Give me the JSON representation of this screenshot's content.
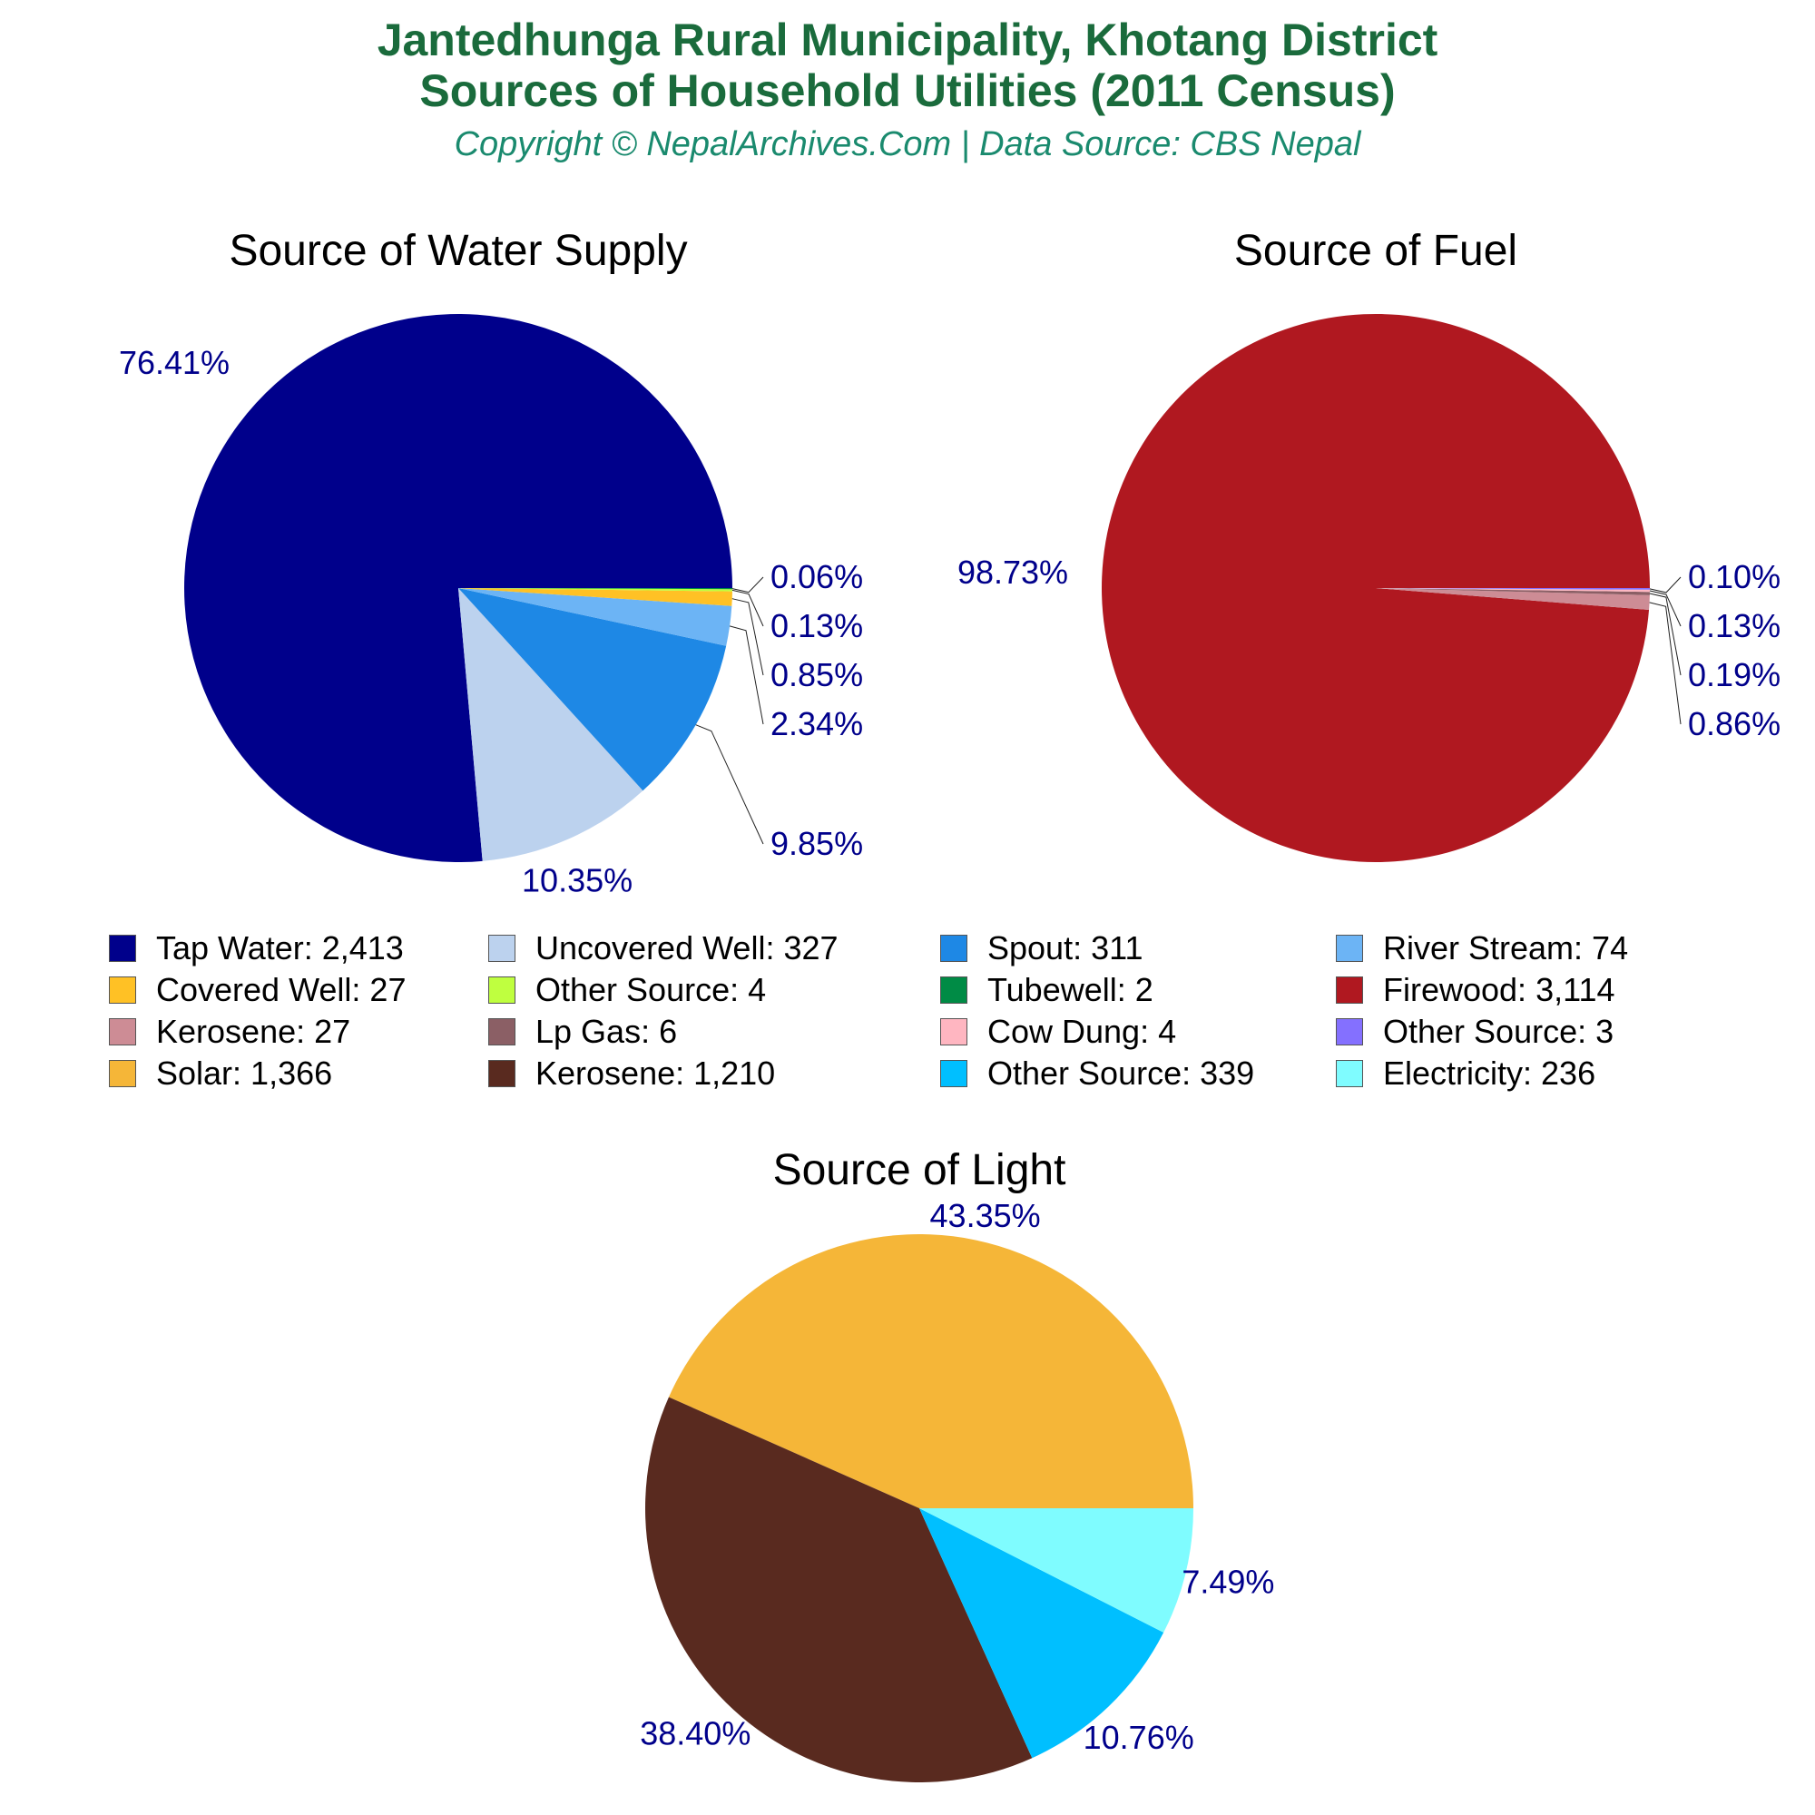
{
  "header": {
    "title_line1": "Jantedhunga Rural Municipality, Khotang District",
    "title_line2": "Sources of Household Utilities (2011 Census)",
    "copyright": "Copyright © NepalArchives.Com | Data Source: CBS Nepal"
  },
  "chart_data": [
    {
      "type": "pie",
      "title": "Source of Water Supply",
      "slices": [
        {
          "label": "Tap Water",
          "value": 2413,
          "pct_label": "76.41%",
          "color": "#00008b"
        },
        {
          "label": "Uncovered Well",
          "value": 327,
          "pct_label": "10.35%",
          "color": "#bcd2ee"
        },
        {
          "label": "Spout",
          "value": 311,
          "pct_label": "9.85%",
          "color": "#1e88e5"
        },
        {
          "label": "River Stream",
          "value": 74,
          "pct_label": "2.34%",
          "color": "#6cb4f5"
        },
        {
          "label": "Covered Well",
          "value": 27,
          "pct_label": "0.85%",
          "color": "#ffc125"
        },
        {
          "label": "Other Source",
          "value": 4,
          "pct_label": "0.13%",
          "color": "#bfff3f"
        },
        {
          "label": "Tubewell",
          "value": 2,
          "pct_label": "0.06%",
          "color": "#008b45"
        }
      ]
    },
    {
      "type": "pie",
      "title": "Source of Fuel",
      "slices": [
        {
          "label": "Firewood",
          "value": 3114,
          "pct_label": "98.73%",
          "color": "#b01820"
        },
        {
          "label": "Kerosene",
          "value": 27,
          "pct_label": "0.86%",
          "color": "#cd8c95"
        },
        {
          "label": "Lp Gas",
          "value": 6,
          "pct_label": "0.19%",
          "color": "#8b5f65"
        },
        {
          "label": "Cow Dung",
          "value": 4,
          "pct_label": "0.13%",
          "color": "#ffb6c1"
        },
        {
          "label": "Other Source",
          "value": 3,
          "pct_label": "0.10%",
          "color": "#8470ff"
        }
      ]
    },
    {
      "type": "pie",
      "title": "Source of Light",
      "slices": [
        {
          "label": "Solar",
          "value": 1366,
          "pct_label": "43.35%",
          "color": "#f5b638"
        },
        {
          "label": "Kerosene",
          "value": 1210,
          "pct_label": "38.40%",
          "color": "#592a1f"
        },
        {
          "label": "Other Source",
          "value": 339,
          "pct_label": "10.76%",
          "color": "#00bfff"
        },
        {
          "label": "Electricity",
          "value": 236,
          "pct_label": "7.49%",
          "color": "#7ffcff"
        }
      ]
    }
  ],
  "legend": [
    {
      "text": "Tap Water: 2,413",
      "color": "#00008b"
    },
    {
      "text": "Uncovered Well: 327",
      "color": "#bcd2ee"
    },
    {
      "text": "Spout: 311",
      "color": "#1e88e5"
    },
    {
      "text": "River Stream: 74",
      "color": "#6cb4f5"
    },
    {
      "text": "Covered Well: 27",
      "color": "#ffc125"
    },
    {
      "text": "Other Source: 4",
      "color": "#bfff3f"
    },
    {
      "text": "Tubewell: 2",
      "color": "#008b45"
    },
    {
      "text": "Firewood: 3,114",
      "color": "#b01820"
    },
    {
      "text": "Kerosene: 27",
      "color": "#cd8c95"
    },
    {
      "text": "Lp Gas: 6",
      "color": "#8b5f65"
    },
    {
      "text": "Cow Dung: 4",
      "color": "#ffb6c1"
    },
    {
      "text": "Other Source: 3",
      "color": "#8470ff"
    },
    {
      "text": "Solar: 1,366",
      "color": "#f5b638"
    },
    {
      "text": "Kerosene: 1,210",
      "color": "#592a1f"
    },
    {
      "text": "Other Source: 339",
      "color": "#00bfff"
    },
    {
      "text": "Electricity: 236",
      "color": "#7ffcff"
    }
  ]
}
